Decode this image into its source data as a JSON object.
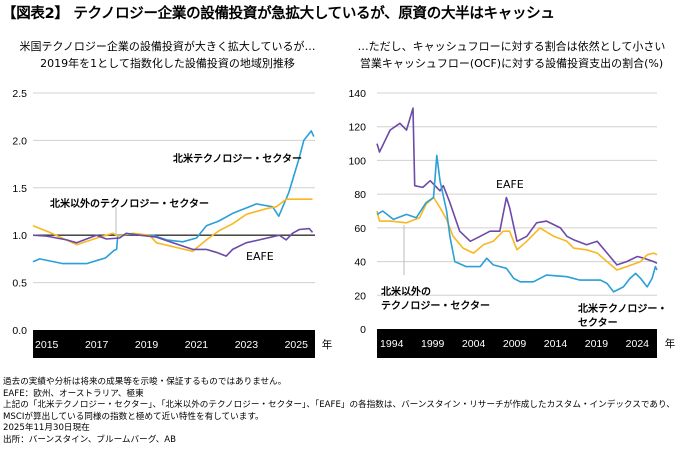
{
  "title": "【図表2】 テクノロジー企業の設備投資が急拡大しているが、原資の大半はキャッシュ",
  "colors": {
    "na_tech": "#2a9fd8",
    "ex_na_tech": "#f9b721",
    "eafe": "#6b4aa8",
    "axis_bar": "#000000",
    "grid": "#d0d0d0"
  },
  "chart_data": [
    {
      "type": "line",
      "title": "米国テクノロジー企業の設備投資が大きく拡大しているが…",
      "subtitle": "2019年を1として指数化した設備投資の地域別推移",
      "xlabel": "年",
      "ylabel": "",
      "xlim": [
        2014.45,
        2025.75
      ],
      "ylim": [
        0,
        2.5
      ],
      "xticks": [
        2015,
        2017,
        2019,
        2021,
        2023,
        2025
      ],
      "yticks": [
        "0.0",
        "0.5",
        "1.0",
        "1.5",
        "2.0",
        "2.5"
      ],
      "reference_line": 1.0,
      "grid": true,
      "annotations": {
        "na_tech": "北米テクノロジー・セクター",
        "ex_na_tech": "北米以外のテクノロジー・セクター",
        "eafe": "EAFE"
      },
      "series": [
        {
          "name": "北米テクノロジー・セクター",
          "key": "na_tech",
          "x": [
            2014.45,
            2014.72,
            2015.65,
            2016.6,
            2017.1,
            2017.35,
            2017.7,
            2017.8,
            2017.85,
            2018.45,
            2019.25,
            2019.8,
            2020.45,
            2021.0,
            2021.4,
            2021.9,
            2022.45,
            2023.4,
            2024.05,
            2024.3,
            2024.7,
            2025.1,
            2025.3,
            2025.6,
            2025.7
          ],
          "y": [
            0.72,
            0.75,
            0.7,
            0.7,
            0.74,
            0.76,
            0.84,
            0.85,
            1.0,
            1.01,
            1.0,
            0.95,
            0.93,
            0.97,
            1.1,
            1.15,
            1.23,
            1.33,
            1.3,
            1.2,
            1.45,
            1.8,
            2.0,
            2.1,
            2.04
          ]
        },
        {
          "name": "北米以外のテクノロジー・セクター",
          "key": "ex_na_tech",
          "x": [
            2014.45,
            2015.12,
            2016.2,
            2017.12,
            2017.65,
            2017.85,
            2018.45,
            2019.12,
            2019.4,
            2020.05,
            2020.85,
            2021.4,
            2021.92,
            2022.45,
            2023.0,
            2023.8,
            2024.2,
            2024.6,
            2025.12,
            2025.65
          ],
          "y": [
            1.1,
            1.03,
            0.9,
            0.98,
            1.02,
            0.99,
            1.02,
            1.0,
            0.92,
            0.88,
            0.83,
            0.95,
            1.05,
            1.12,
            1.22,
            1.28,
            1.3,
            1.38,
            1.38,
            1.38
          ]
        },
        {
          "name": "EAFE",
          "key": "eafe",
          "x": [
            2014.45,
            2014.99,
            2015.8,
            2016.2,
            2016.99,
            2017.39,
            2017.92,
            2018.19,
            2018.72,
            2019.39,
            2020.05,
            2020.85,
            2021.39,
            2021.79,
            2022.19,
            2022.45,
            2022.99,
            2023.52,
            2024.32,
            2024.59,
            2024.85,
            2025.12,
            2025.52,
            2025.65
          ],
          "y": [
            1.0,
            0.99,
            0.95,
            0.92,
            1.0,
            0.96,
            0.97,
            1.02,
            1.0,
            0.98,
            0.92,
            0.85,
            0.85,
            0.82,
            0.78,
            0.85,
            0.92,
            0.95,
            1.0,
            0.95,
            1.02,
            1.06,
            1.07,
            1.03
          ]
        }
      ]
    },
    {
      "type": "line",
      "title": "…ただし、キャッシュフローに対する割合は依然として小さい",
      "subtitle": "営業キャッシュフロー(OCF)に対する設備投資支出の割合(%)",
      "xlabel": "年",
      "ylabel": "%",
      "xlim": [
        1992.2,
        2026.4
      ],
      "ylim": [
        0,
        140
      ],
      "xticks": [
        1994,
        1999,
        2004,
        2009,
        2014,
        2019,
        2024
      ],
      "yticks": [
        "0",
        "20",
        "40",
        "60",
        "80",
        "100",
        "120",
        "140"
      ],
      "grid": true,
      "annotations": {
        "na_tech_1": "北米テクノロジー・",
        "na_tech_2": "セクター",
        "ex_na_tech_1": "北米以外の",
        "ex_na_tech_2": "テクノロジー・セクター",
        "eafe": "EAFE"
      },
      "series": [
        {
          "name": "北米テクノロジー・セクター",
          "key": "na_tech",
          "x": [
            1992.2,
            1992.9,
            1994.2,
            1995.8,
            1997.0,
            1998.2,
            1999.1,
            1999.5,
            1999.9,
            2000.7,
            2001.1,
            2001.7,
            2003.1,
            2004.8,
            2005.6,
            2006.4,
            2008.0,
            2008.9,
            2009.7,
            2011.3,
            2012.9,
            2015.4,
            2017.0,
            2019.5,
            2020.3,
            2021.1,
            2022.3,
            2023.1,
            2023.8,
            2024.4,
            2025.2,
            2025.8,
            2026.2,
            2026.4
          ],
          "y": [
            68,
            70,
            65,
            68,
            66,
            75,
            78,
            103,
            88,
            70,
            55,
            40,
            37,
            37,
            42,
            38,
            36,
            30,
            28,
            28,
            32,
            31,
            29,
            29,
            27,
            22,
            25,
            30,
            33,
            30,
            25,
            30,
            37,
            35
          ]
        },
        {
          "name": "北米以外のテクノロジー・セクター",
          "key": "ex_na_tech",
          "x": [
            1992.2,
            1992.5,
            1993.8,
            1995.8,
            1997.4,
            1998.2,
            1999.1,
            1999.9,
            2000.7,
            2001.5,
            2002.7,
            2004.0,
            2005.2,
            2006.4,
            2007.6,
            2008.4,
            2009.3,
            2010.5,
            2012.1,
            2013.8,
            2015.4,
            2016.2,
            2017.8,
            2019.1,
            2020.3,
            2021.5,
            2022.7,
            2024.4,
            2025.2,
            2026.0,
            2026.4
          ],
          "y": [
            70,
            64,
            64,
            63,
            66,
            74,
            78,
            72,
            65,
            55,
            48,
            45,
            50,
            52,
            58,
            58,
            47,
            52,
            60,
            55,
            52,
            48,
            47,
            45,
            40,
            35,
            37,
            40,
            44,
            45,
            44
          ]
        },
        {
          "name": "EAFE",
          "key": "eafe",
          "x": [
            1992.2,
            1992.5,
            1993.8,
            1995.0,
            1995.8,
            1996.6,
            1996.8,
            1997.8,
            1998.7,
            1999.9,
            2000.3,
            2001.1,
            2002.3,
            2003.6,
            2004.8,
            2006.0,
            2007.2,
            2008.0,
            2008.4,
            2009.3,
            2010.5,
            2011.7,
            2012.9,
            2014.6,
            2015.4,
            2016.2,
            2017.8,
            2019.1,
            2020.3,
            2021.5,
            2022.7,
            2024.0,
            2024.8,
            2026.0,
            2026.4
          ],
          "y": [
            110,
            105,
            118,
            122,
            118,
            131,
            85,
            84,
            88,
            82,
            85,
            75,
            58,
            52,
            55,
            58,
            58,
            78,
            72,
            52,
            55,
            63,
            64,
            60,
            55,
            53,
            50,
            52,
            45,
            38,
            40,
            43,
            42,
            40,
            39
          ]
        }
      ]
    }
  ],
  "notes": [
    "過去の実績や分析は将来の成果等を示唆・保証するものではありません。",
    "EAFE：欧州、オーストラリア、極東",
    "上記の「北米テクノロジー・セクター」、「北米以外のテクノロジー・セクター」、「EAFE」の各指数は、バーンスタイン・リサーチが作成したカスタム・インデックスであり、",
    "MSCIが算出している同様の指数と極めて近い特性を有しています。",
    "2025年11月30日現在",
    "出所：バーンスタイン、ブルームバーグ、AB"
  ]
}
